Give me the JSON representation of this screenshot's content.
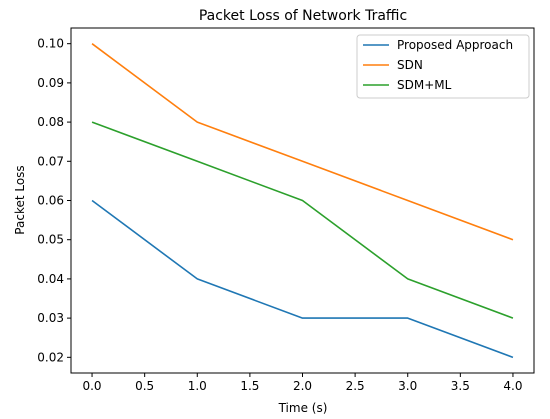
{
  "chart_data": {
    "type": "line",
    "title": "Packet Loss of Network Traffic",
    "xlabel": "Time (s)",
    "ylabel": "Packet Loss",
    "x": [
      0.0,
      1.0,
      2.0,
      3.0,
      4.0
    ],
    "series": [
      {
        "name": "Proposed Approach",
        "color": "#1f77b4",
        "values": [
          0.06,
          0.04,
          0.03,
          0.03,
          0.02
        ]
      },
      {
        "name": "SDN",
        "color": "#ff7f0e",
        "values": [
          0.1,
          0.08,
          0.07,
          0.06,
          0.05
        ]
      },
      {
        "name": "SDM+ML",
        "color": "#2ca02c",
        "values": [
          0.08,
          0.07,
          0.06,
          0.04,
          0.03
        ]
      }
    ],
    "xlim": [
      -0.2,
      4.2
    ],
    "ylim": [
      0.016,
      0.104
    ],
    "xticks": [
      "0.0",
      "0.5",
      "1.0",
      "1.5",
      "2.0",
      "2.5",
      "3.0",
      "3.5",
      "4.0"
    ],
    "yticks": [
      "0.02",
      "0.03",
      "0.04",
      "0.05",
      "0.06",
      "0.07",
      "0.08",
      "0.09",
      "0.10"
    ],
    "grid": false,
    "legend_position": "top-right"
  }
}
